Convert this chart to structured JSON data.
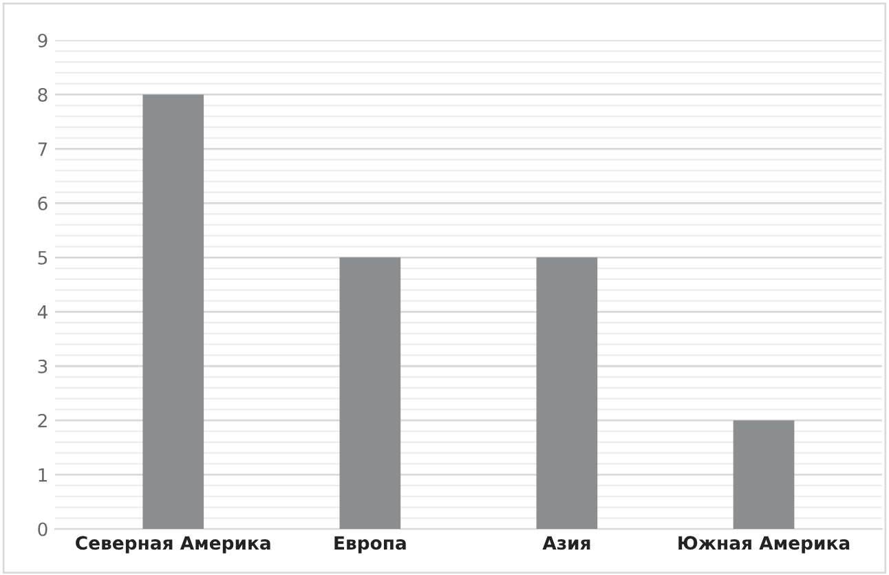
{
  "chart_data": {
    "type": "bar",
    "categories": [
      "Северная Америка",
      "Европа",
      "Азия",
      "Южная Америка"
    ],
    "values": [
      8,
      5,
      5,
      2
    ],
    "color": "#8c8d91",
    "ylim": [
      0,
      9
    ],
    "yticks": [
      0,
      1,
      2,
      3,
      4,
      5,
      6,
      7,
      8,
      9
    ],
    "grid": "y"
  }
}
